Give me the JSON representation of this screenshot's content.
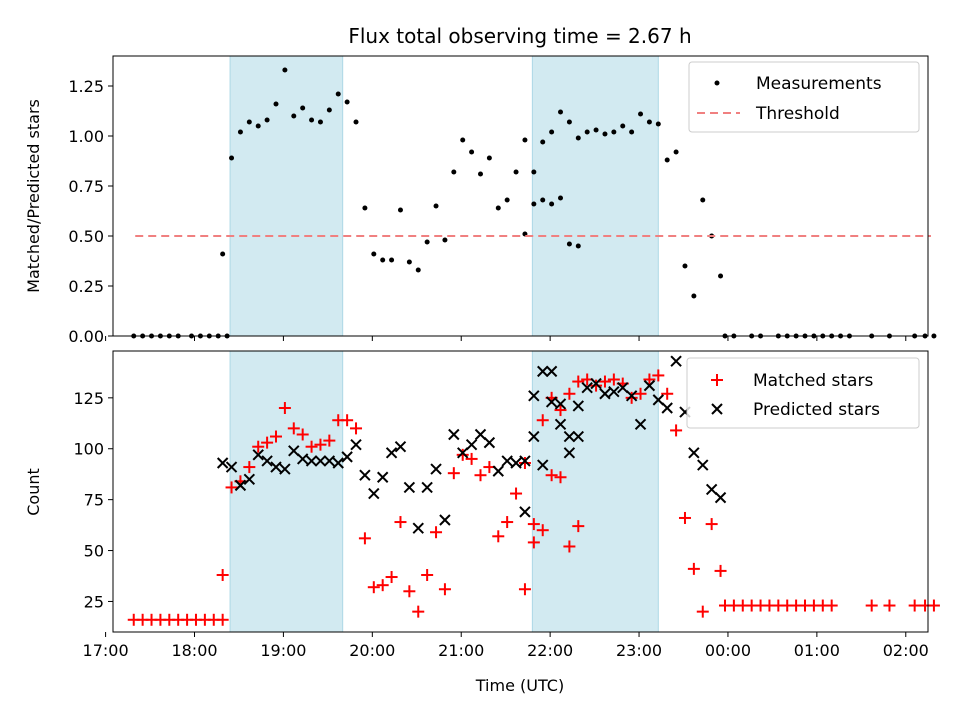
{
  "chart_data": [
    {
      "type": "scatter",
      "title": "Flux total observing time = 2.67 h",
      "xlabel": "",
      "ylabel": "Matched/Predicted stars",
      "xlim": [
        "17:05",
        "02:15"
      ],
      "ylim": [
        0,
        1.4
      ],
      "grid": false,
      "legend": "top-right",
      "yticks": [
        "0.00",
        "0.25",
        "0.50",
        "0.75",
        "1.00",
        "1.25"
      ],
      "yticks_values": [
        0,
        0.25,
        0.5,
        0.75,
        1.0,
        1.25
      ],
      "shaded_intervals": [
        [
          "18:24",
          "19:40"
        ],
        [
          "21:48",
          "23:13"
        ]
      ],
      "shade_color": "#add8e6",
      "series": [
        {
          "name": "Measurements",
          "marker": "dot",
          "color": "#000000",
          "points": [
            [
              "17:19",
              0
            ],
            [
              "17:25",
              0
            ],
            [
              "17:31",
              0
            ],
            [
              "17:37",
              0
            ],
            [
              "17:43",
              0
            ],
            [
              "17:49",
              0
            ],
            [
              "17:58",
              0
            ],
            [
              "18:04",
              0
            ],
            [
              "18:10",
              0
            ],
            [
              "18:16",
              0
            ],
            [
              "18:22",
              0
            ],
            [
              "18:19",
              0.41
            ],
            [
              "18:25",
              0.89
            ],
            [
              "18:31",
              1.02
            ],
            [
              "18:37",
              1.07
            ],
            [
              "18:43",
              1.05
            ],
            [
              "18:49",
              1.08
            ],
            [
              "18:55",
              1.16
            ],
            [
              "19:01",
              1.33
            ],
            [
              "19:07",
              1.1
            ],
            [
              "19:13",
              1.14
            ],
            [
              "19:19",
              1.08
            ],
            [
              "19:25",
              1.07
            ],
            [
              "19:31",
              1.13
            ],
            [
              "19:37",
              1.21
            ],
            [
              "19:43",
              1.17
            ],
            [
              "19:49",
              1.07
            ],
            [
              "19:55",
              0.64
            ],
            [
              "20:01",
              0.41
            ],
            [
              "20:07",
              0.38
            ],
            [
              "20:13",
              0.38
            ],
            [
              "20:19",
              0.63
            ],
            [
              "20:25",
              0.37
            ],
            [
              "20:31",
              0.33
            ],
            [
              "20:37",
              0.47
            ],
            [
              "20:43",
              0.65
            ],
            [
              "20:49",
              0.48
            ],
            [
              "20:55",
              0.82
            ],
            [
              "21:01",
              0.98
            ],
            [
              "21:07",
              0.92
            ],
            [
              "21:13",
              0.81
            ],
            [
              "21:19",
              0.89
            ],
            [
              "21:25",
              0.64
            ],
            [
              "21:31",
              0.68
            ],
            [
              "21:37",
              0.82
            ],
            [
              "21:43",
              0.98
            ],
            [
              "21:49",
              0.66
            ],
            [
              "21:55",
              0.68
            ],
            [
              "22:01",
              0.66
            ],
            [
              "22:07",
              0.69
            ],
            [
              "22:13",
              0.46
            ],
            [
              "22:19",
              0.45
            ],
            [
              "21:43",
              0.51
            ],
            [
              "21:49",
              0.82
            ],
            [
              "21:55",
              0.97
            ],
            [
              "22:01",
              1.02
            ],
            [
              "22:07",
              1.12
            ],
            [
              "22:13",
              1.07
            ],
            [
              "22:19",
              0.99
            ],
            [
              "22:25",
              1.02
            ],
            [
              "22:31",
              1.03
            ],
            [
              "22:37",
              1.01
            ],
            [
              "22:43",
              1.02
            ],
            [
              "22:49",
              1.05
            ],
            [
              "22:55",
              1.02
            ],
            [
              "23:01",
              1.11
            ],
            [
              "23:07",
              1.07
            ],
            [
              "23:13",
              1.06
            ],
            [
              "23:19",
              0.88
            ],
            [
              "23:25",
              0.92
            ],
            [
              "23:31",
              0.35
            ],
            [
              "23:37",
              0.2
            ],
            [
              "23:43",
              0.68
            ],
            [
              "23:49",
              0.5
            ],
            [
              "23:55",
              0.3
            ],
            [
              "23:58",
              0
            ],
            [
              "00:04",
              0
            ],
            [
              "00:16",
              0
            ],
            [
              "00:22",
              0
            ],
            [
              "00:34",
              0
            ],
            [
              "00:40",
              0
            ],
            [
              "00:46",
              0
            ],
            [
              "00:52",
              0
            ],
            [
              "00:58",
              0
            ],
            [
              "01:04",
              0
            ],
            [
              "01:10",
              0
            ],
            [
              "01:16",
              0
            ],
            [
              "01:22",
              0
            ],
            [
              "01:37",
              0
            ],
            [
              "01:49",
              0
            ],
            [
              "02:06",
              0
            ],
            [
              "02:13",
              0
            ],
            [
              "02:19",
              0
            ]
          ]
        },
        {
          "name": "Threshold",
          "marker": "dashed-line",
          "color": "#f08080",
          "points": [
            [
              "17:20",
              0.5
            ],
            [
              "02:17",
              0.5
            ]
          ]
        }
      ]
    },
    {
      "type": "scatter",
      "title": "",
      "xlabel": "Time (UTC)",
      "ylabel": "Count",
      "xlim": [
        "17:05",
        "02:15"
      ],
      "ylim": [
        10,
        148
      ],
      "grid": false,
      "legend": "top-right",
      "yticks": [
        "25",
        "50",
        "75",
        "100",
        "125"
      ],
      "yticks_values": [
        25,
        50,
        75,
        100,
        125
      ],
      "xticks": [
        "17:00",
        "18:00",
        "19:00",
        "20:00",
        "21:00",
        "22:00",
        "23:00",
        "00:00",
        "01:00",
        "02:00"
      ],
      "shaded_intervals": [
        [
          "18:24",
          "19:40"
        ],
        [
          "21:48",
          "23:13"
        ]
      ],
      "shade_color": "#add8e6",
      "series": [
        {
          "name": "Matched stars",
          "marker": "plus",
          "color": "#ff0000",
          "points": [
            [
              "17:19",
              16
            ],
            [
              "17:25",
              16
            ],
            [
              "17:31",
              16
            ],
            [
              "17:37",
              16
            ],
            [
              "17:43",
              16
            ],
            [
              "17:49",
              16
            ],
            [
              "17:55",
              16
            ],
            [
              "18:01",
              16
            ],
            [
              "18:07",
              16
            ],
            [
              "18:13",
              16
            ],
            [
              "18:19",
              16
            ],
            [
              "18:19",
              38
            ],
            [
              "18:25",
              81
            ],
            [
              "18:31",
              84
            ],
            [
              "18:37",
              91
            ],
            [
              "18:43",
              101
            ],
            [
              "18:49",
              103
            ],
            [
              "18:55",
              106
            ],
            [
              "19:01",
              120
            ],
            [
              "19:07",
              110
            ],
            [
              "19:13",
              107
            ],
            [
              "19:19",
              101
            ],
            [
              "19:25",
              102
            ],
            [
              "19:31",
              104
            ],
            [
              "19:37",
              114
            ],
            [
              "19:43",
              114
            ],
            [
              "19:49",
              110
            ],
            [
              "19:55",
              56
            ],
            [
              "20:01",
              32
            ],
            [
              "20:07",
              33
            ],
            [
              "20:13",
              37
            ],
            [
              "20:19",
              64
            ],
            [
              "20:25",
              30
            ],
            [
              "20:31",
              20
            ],
            [
              "20:37",
              38
            ],
            [
              "20:43",
              59
            ],
            [
              "20:49",
              31
            ],
            [
              "20:55",
              88
            ],
            [
              "21:01",
              97
            ],
            [
              "21:07",
              95
            ],
            [
              "21:13",
              87
            ],
            [
              "21:19",
              91
            ],
            [
              "21:25",
              57
            ],
            [
              "21:31",
              64
            ],
            [
              "21:37",
              78
            ],
            [
              "21:43",
              93
            ],
            [
              "21:49",
              63
            ],
            [
              "21:55",
              60
            ],
            [
              "22:01",
              87
            ],
            [
              "22:07",
              86
            ],
            [
              "22:13",
              52
            ],
            [
              "22:19",
              62
            ],
            [
              "21:43",
              31
            ],
            [
              "21:49",
              54
            ],
            [
              "21:55",
              114
            ],
            [
              "22:01",
              125
            ],
            [
              "22:07",
              119
            ],
            [
              "22:13",
              127
            ],
            [
              "22:19",
              133
            ],
            [
              "22:25",
              134
            ],
            [
              "22:31",
              131
            ],
            [
              "22:37",
              133
            ],
            [
              "22:43",
              134
            ],
            [
              "22:49",
              132
            ],
            [
              "22:55",
              125
            ],
            [
              "23:01",
              127
            ],
            [
              "23:07",
              134
            ],
            [
              "23:13",
              136
            ],
            [
              "23:19",
              127
            ],
            [
              "23:25",
              109
            ],
            [
              "23:31",
              66
            ],
            [
              "23:37",
              41
            ],
            [
              "23:43",
              20
            ],
            [
              "23:49",
              63
            ],
            [
              "23:55",
              40
            ],
            [
              "23:58",
              23
            ],
            [
              "00:04",
              23
            ],
            [
              "00:10",
              23
            ],
            [
              "00:16",
              23
            ],
            [
              "00:22",
              23
            ],
            [
              "00:28",
              23
            ],
            [
              "00:34",
              23
            ],
            [
              "00:40",
              23
            ],
            [
              "00:46",
              23
            ],
            [
              "00:52",
              23
            ],
            [
              "00:58",
              23
            ],
            [
              "01:04",
              23
            ],
            [
              "01:10",
              23
            ],
            [
              "01:37",
              23
            ],
            [
              "01:49",
              23
            ],
            [
              "02:06",
              23
            ],
            [
              "02:13",
              23
            ],
            [
              "02:19",
              23
            ]
          ]
        },
        {
          "name": "Predicted stars",
          "marker": "x",
          "color": "#000000",
          "points": [
            [
              "18:19",
              93
            ],
            [
              "18:25",
              91
            ],
            [
              "18:31",
              82
            ],
            [
              "18:37",
              85
            ],
            [
              "18:43",
              97
            ],
            [
              "18:49",
              94
            ],
            [
              "18:55",
              91
            ],
            [
              "19:01",
              90
            ],
            [
              "19:07",
              99
            ],
            [
              "19:13",
              95
            ],
            [
              "19:19",
              94
            ],
            [
              "19:25",
              94
            ],
            [
              "19:31",
              94
            ],
            [
              "19:37",
              93
            ],
            [
              "19:43",
              96
            ],
            [
              "19:49",
              102
            ],
            [
              "19:55",
              87
            ],
            [
              "20:01",
              78
            ],
            [
              "20:07",
              86
            ],
            [
              "20:13",
              98
            ],
            [
              "20:19",
              101
            ],
            [
              "20:25",
              81
            ],
            [
              "20:31",
              61
            ],
            [
              "20:37",
              81
            ],
            [
              "20:43",
              90
            ],
            [
              "20:49",
              65
            ],
            [
              "20:55",
              107
            ],
            [
              "21:01",
              98
            ],
            [
              "21:07",
              102
            ],
            [
              "21:13",
              107
            ],
            [
              "21:19",
              103
            ],
            [
              "21:25",
              89
            ],
            [
              "21:31",
              94
            ],
            [
              "21:37",
              93
            ],
            [
              "21:43",
              94
            ],
            [
              "21:49",
              126
            ],
            [
              "21:55",
              92
            ],
            [
              "22:01",
              123
            ],
            [
              "22:07",
              112
            ],
            [
              "22:13",
              98
            ],
            [
              "22:19",
              106
            ],
            [
              "21:43",
              69
            ],
            [
              "21:49",
              106
            ],
            [
              "21:55",
              138
            ],
            [
              "22:01",
              138
            ],
            [
              "22:07",
              122
            ],
            [
              "22:13",
              106
            ],
            [
              "22:19",
              121
            ],
            [
              "22:25",
              130
            ],
            [
              "22:31",
              132
            ],
            [
              "22:37",
              127
            ],
            [
              "22:43",
              128
            ],
            [
              "22:49",
              130
            ],
            [
              "22:55",
              126
            ],
            [
              "23:01",
              112
            ],
            [
              "23:07",
              131
            ],
            [
              "23:13",
              124
            ],
            [
              "23:19",
              120
            ],
            [
              "23:25",
              143
            ],
            [
              "23:31",
              118
            ],
            [
              "23:37",
              98
            ],
            [
              "23:43",
              92
            ],
            [
              "23:49",
              80
            ],
            [
              "23:55",
              76
            ]
          ]
        }
      ]
    }
  ]
}
